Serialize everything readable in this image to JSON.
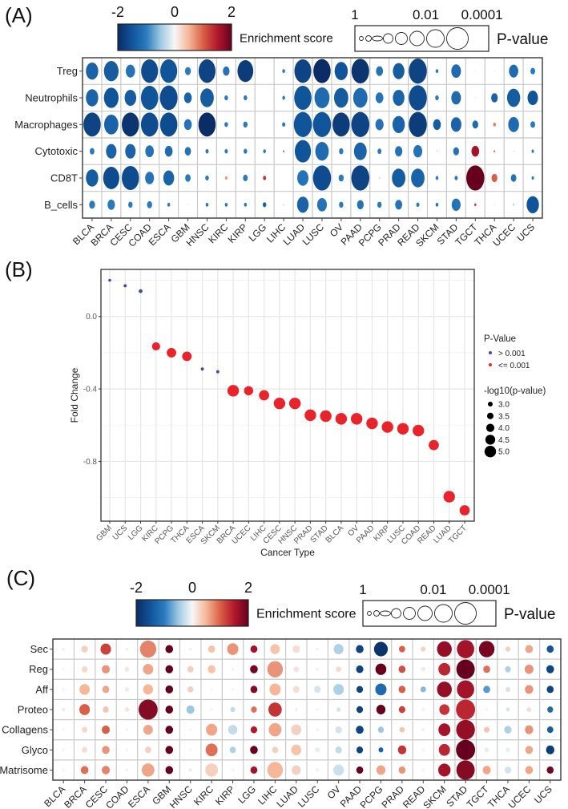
{
  "panels": {
    "a": {
      "label": "(A)"
    },
    "b": {
      "label": "(B)"
    },
    "c": {
      "label": "(C)"
    }
  },
  "colors": {
    "scale": [
      "#0b2c64",
      "#10549a",
      "#2a7abf",
      "#9dc8e2",
      "#f7f7f7",
      "#f6b698",
      "#d95f47",
      "#b2182b",
      "#67001f"
    ],
    "not_significant": "#3a4fa0",
    "significant": "#e8242a"
  },
  "chart_data": [
    {
      "type": "heatmap",
      "colorbar": {
        "title": "Enrichment score",
        "ticks": [
          "-2",
          "0",
          "2"
        ],
        "range": [
          -2,
          2
        ]
      },
      "size_legend": {
        "title": "P-value",
        "ticks": [
          "1",
          "0.01",
          "0.0001"
        ]
      },
      "rows": [
        "Treg",
        "Neutrophils",
        "Macrophages",
        "Cytotoxic",
        "CD8T",
        "B_cells"
      ],
      "columns": [
        "BLCA",
        "BRCA",
        "CESC",
        "COAD",
        "ESCA",
        "GBM",
        "HNSC",
        "KIRC",
        "KIRP",
        "LGG",
        "LIHC",
        "LUAD",
        "LUSC",
        "OV",
        "PAAD",
        "PCPG",
        "PRAD",
        "READ",
        "SKCM",
        "STAD",
        "TGCT",
        "THCA",
        "UCEC",
        "UCS"
      ],
      "enrichment_score": [
        [
          -1.3,
          -1.4,
          -1.1,
          -1.6,
          -1.5,
          -1.0,
          -1.7,
          -1.1,
          -1.8,
          0,
          -1.0,
          -1.7,
          -2.0,
          -1.5,
          -1.9,
          -1.1,
          -1.4,
          -1.7,
          -1.0,
          -1.2,
          -0.1,
          -0.1,
          -1.2,
          -1.0
        ],
        [
          -1.3,
          -1.5,
          -1.4,
          -1.5,
          -1.6,
          -1.3,
          -1.4,
          -1.0,
          -1.0,
          0,
          -1.0,
          -1.5,
          -1.2,
          -1.4,
          -1.2,
          -1.1,
          -1.3,
          -1.6,
          -1.0,
          -1.2,
          -0.1,
          -1.3,
          -1.4,
          -1.5
        ],
        [
          -1.7,
          -1.3,
          -1.9,
          -1.6,
          -1.6,
          -1.1,
          -2.0,
          -1.0,
          -1.0,
          0,
          -1.0,
          -1.5,
          -1.5,
          -1.8,
          -1.7,
          -1.1,
          -1.3,
          -1.8,
          -1.4,
          -1.3,
          -1.2,
          0.8,
          -1.2,
          -1.0
        ],
        [
          -1.0,
          -1.3,
          -1.3,
          -1.1,
          -1.2,
          -1.1,
          -1.0,
          -1.0,
          -1.0,
          -1.0,
          -0.8,
          -1.5,
          -1.2,
          -1.0,
          -1.3,
          -1.0,
          -1.1,
          -1.1,
          -0.3,
          -1.1,
          1.6,
          0.9,
          -0.2,
          -1.0
        ],
        [
          -1.4,
          -1.6,
          -1.6,
          -1.1,
          -1.3,
          -1.0,
          -1.0,
          0.7,
          -1.0,
          1.3,
          0,
          -1.1,
          -1.6,
          -1.0,
          -1.7,
          -0.3,
          -1.4,
          -1.3,
          -1.0,
          -1.0,
          2.0,
          1.0,
          -1.1,
          -1.0
        ],
        [
          -1.0,
          -1.0,
          -1.0,
          -1.0,
          -1.0,
          -0.1,
          -1.0,
          -1.0,
          -1.0,
          -1.3,
          -0.3,
          -1.3,
          -1.1,
          -1.0,
          -1.1,
          -1.0,
          -1.1,
          -1.0,
          -1.0,
          -1.1,
          1.2,
          -0.1,
          -0.4,
          -1.5
        ]
      ],
      "neg_log10_p": [
        [
          3.0,
          3.6,
          2.2,
          4.2,
          4.2,
          1.3,
          4.2,
          1.5,
          3.9,
          0,
          0.5,
          4.2,
          4.3,
          3.2,
          4.4,
          1.6,
          2.8,
          4.5,
          0.5,
          2.3,
          0.1,
          0.1,
          2.2,
          1.0
        ],
        [
          3.0,
          3.6,
          2.8,
          4.3,
          4.4,
          1.8,
          3.3,
          0.7,
          0.7,
          0,
          0.5,
          4.3,
          3.7,
          3.5,
          3.5,
          1.8,
          2.8,
          4.5,
          0.7,
          2.3,
          0.1,
          1.5,
          3.2,
          2.5
        ],
        [
          4.3,
          3.5,
          4.3,
          4.3,
          4.3,
          1.8,
          4.3,
          0.7,
          0.9,
          0,
          0.6,
          4.5,
          4.5,
          4.3,
          4.5,
          1.9,
          3.0,
          4.5,
          1.8,
          2.5,
          1.3,
          0.5,
          2.6,
          1.0
        ],
        [
          1.0,
          2.5,
          2.5,
          2.0,
          1.8,
          1.4,
          0.6,
          0.6,
          0.7,
          0.5,
          0.2,
          4.0,
          3.3,
          0.9,
          3.1,
          0.8,
          1.7,
          2.1,
          0.1,
          1.3,
          1.8,
          0.2,
          0.1,
          0.4
        ],
        [
          3.0,
          4.0,
          4.3,
          2.1,
          2.6,
          1.2,
          0.7,
          0.4,
          1.0,
          0.6,
          0,
          2.7,
          4.5,
          1.1,
          4.5,
          0.1,
          3.3,
          3.3,
          0.5,
          0.6,
          4.5,
          1.3,
          1.2,
          0.4
        ],
        [
          1.3,
          1.7,
          0.9,
          1.1,
          0.5,
          0.1,
          0.5,
          0.5,
          0.5,
          0.7,
          0.1,
          2.8,
          2.3,
          0.9,
          1.5,
          0.9,
          1.6,
          0.6,
          0.5,
          2.1,
          0.3,
          0.1,
          0.2,
          3.0
        ]
      ]
    },
    {
      "type": "scatter",
      "xlabel": "Cancer Type",
      "ylabel": "Fold Change",
      "ylim": [
        -1.13,
        0.26
      ],
      "yticks": [
        "0.0",
        "-0.4",
        "-0.8"
      ],
      "ytick_values": [
        0.0,
        -0.4,
        -0.8
      ],
      "grid": true,
      "legend_placement": "right",
      "color_legend": {
        "title": "P-Value",
        "entries": [
          "> 0.001",
          "<= 0.001"
        ]
      },
      "size_legend": {
        "title": "-log10(p-value)",
        "entries": [
          "3.0",
          "3.5",
          "4.0",
          "4.5",
          "5.0"
        ],
        "values": [
          3.0,
          3.5,
          4.0,
          4.5,
          5.0
        ]
      },
      "categories": [
        "GBM",
        "UCS",
        "LGG",
        "KIRC",
        "PCPG",
        "THCA",
        "ESCA",
        "SKCM",
        "BRCA",
        "UCEC",
        "LIHC",
        "CESC",
        "HNSC",
        "PRAD",
        "STAD",
        "BLCA",
        "OV",
        "PAAD",
        "KIRP",
        "LUSC",
        "COAD",
        "READ",
        "LUAD",
        "TGCT"
      ],
      "fold_change": [
        0.2,
        0.17,
        0.14,
        -0.165,
        -0.2,
        -0.22,
        -0.29,
        -0.305,
        -0.41,
        -0.41,
        -0.435,
        -0.48,
        -0.48,
        -0.545,
        -0.55,
        -0.565,
        -0.565,
        -0.59,
        -0.61,
        -0.62,
        -0.63,
        -0.71,
        -0.995,
        -1.07
      ],
      "significant": [
        false,
        false,
        false,
        true,
        true,
        true,
        false,
        false,
        true,
        true,
        true,
        true,
        true,
        true,
        true,
        true,
        true,
        true,
        true,
        true,
        true,
        true,
        true,
        true
      ],
      "neg_log10_p": [
        2.0,
        2.5,
        2.7,
        4.0,
        4.4,
        4.4,
        2.5,
        2.5,
        5.0,
        4.3,
        4.6,
        5.0,
        5.0,
        5.0,
        5.0,
        5.0,
        5.0,
        5.0,
        5.0,
        5.0,
        5.0,
        4.6,
        5.0,
        4.6
      ]
    },
    {
      "type": "heatmap",
      "colorbar": {
        "title": "Enrichment score",
        "ticks": [
          "-2",
          "0",
          "2"
        ],
        "range": [
          -2,
          2
        ]
      },
      "size_legend": {
        "title": "P-value",
        "ticks": [
          "1",
          "0.01",
          "0.0001"
        ]
      },
      "rows": [
        "Sec",
        "Reg",
        "Aff",
        "Proteo",
        "Collagens",
        "Glyco",
        "Matrisome"
      ],
      "columns": [
        "BLCA",
        "BRCA",
        "CESC",
        "COAD",
        "ESCA",
        "GBM",
        "HNSC",
        "KIRC",
        "KIRP",
        "LGG",
        "LIHC",
        "LUAD",
        "LUSC",
        "OV",
        "PAAD",
        "PCPG",
        "PRAD",
        "READ",
        "SKCM",
        "STAD",
        "TGCT",
        "THCA",
        "UCEC",
        "UCS"
      ],
      "enrichment_score": [
        [
          0.05,
          0.3,
          1.2,
          -0.05,
          0.8,
          2.0,
          -0.05,
          0.4,
          0.7,
          1.6,
          0.4,
          0.2,
          0.05,
          -0.4,
          -1.7,
          -1.9,
          1.0,
          0.3,
          1.7,
          1.6,
          1.9,
          0.3,
          0.6,
          -1.5
        ],
        [
          0.03,
          0.25,
          0.7,
          0.15,
          0.6,
          2.0,
          0.3,
          0.4,
          0.05,
          1.9,
          0.7,
          0.15,
          0.05,
          0.2,
          -1.7,
          2.0,
          1.1,
          0.1,
          1.4,
          2.0,
          0.9,
          -0.4,
          0.7,
          -1.7
        ],
        [
          0.03,
          0.5,
          0.6,
          0.1,
          0.5,
          2.0,
          0.3,
          0.02,
          0.02,
          1.8,
          0.5,
          0.2,
          -0.2,
          -0.4,
          -1.7,
          -1.2,
          1.0,
          -0.6,
          1.7,
          1.6,
          -0.8,
          -0.2,
          0.7,
          -1.7
        ],
        [
          -0.1,
          1.0,
          0.4,
          0.15,
          1.8,
          2.0,
          -0.5,
          0.02,
          -0.3,
          0.9,
          1.3,
          0.05,
          0.02,
          -0.2,
          -1.7,
          2.0,
          1.2,
          -0.05,
          1.3,
          1.4,
          0.03,
          -0.2,
          0.2,
          -1.2
        ],
        [
          0.02,
          0.25,
          1.0,
          0.02,
          0.6,
          2.0,
          0.02,
          0.6,
          -0.3,
          1.5,
          0.6,
          0.3,
          0.05,
          -0.2,
          -1.7,
          -0.5,
          0.4,
          0.05,
          1.6,
          1.7,
          0.4,
          -0.4,
          0.7,
          -1.4
        ],
        [
          0.03,
          0.2,
          0.7,
          0.02,
          0.3,
          2.0,
          0.02,
          0.9,
          -0.4,
          2.0,
          0.3,
          0.4,
          -0.1,
          -0.3,
          -1.7,
          -1.3,
          1.3,
          0.02,
          1.4,
          2.0,
          -0.1,
          -0.1,
          0.6,
          -1.8
        ],
        [
          0.02,
          0.9,
          0.8,
          0.05,
          0.6,
          2.0,
          0.1,
          0.3,
          0.02,
          1.6,
          0.5,
          0.3,
          0.05,
          -0.25,
          2.0,
          0.6,
          0.7,
          0.02,
          1.6,
          1.8,
          0.6,
          -0.2,
          0.6,
          1.9
        ]
      ],
      "neg_log10_p": [
        [
          0.5,
          1.5,
          2.6,
          0.5,
          4.2,
          1.8,
          0.5,
          1.6,
          2.8,
          1.6,
          2.3,
          1.7,
          0.5,
          2.4,
          1.8,
          3.5,
          1.4,
          1.0,
          3.8,
          4.5,
          4.0,
          1.0,
          1.8,
          1.6
        ],
        [
          0.4,
          1.3,
          1.9,
          1.0,
          2.5,
          1.8,
          1.4,
          1.8,
          0.5,
          1.8,
          4.0,
          1.2,
          0.6,
          1.2,
          1.7,
          2.7,
          1.6,
          0.9,
          3.0,
          4.8,
          1.6,
          1.3,
          2.1,
          1.8
        ],
        [
          0.5,
          2.5,
          1.6,
          0.9,
          2.4,
          1.8,
          1.3,
          0.4,
          0.4,
          1.6,
          2.8,
          1.5,
          1.5,
          2.6,
          1.5,
          2.8,
          1.6,
          1.2,
          3.8,
          4.5,
          1.6,
          1.0,
          2.0,
          1.6
        ],
        [
          0.6,
          2.6,
          1.3,
          0.9,
          5.0,
          1.8,
          1.9,
          0.5,
          1.0,
          1.3,
          3.4,
          0.6,
          0.5,
          0.9,
          1.5,
          2.2,
          1.5,
          0.6,
          2.5,
          5.0,
          0.5,
          0.7,
          0.9,
          1.3
        ],
        [
          0.4,
          1.2,
          1.9,
          0.5,
          2.3,
          1.8,
          0.4,
          2.8,
          2.2,
          1.5,
          3.2,
          2.5,
          0.5,
          1.5,
          1.8,
          1.3,
          1.1,
          0.6,
          3.0,
          4.9,
          1.2,
          1.7,
          2.0,
          1.4
        ],
        [
          0.5,
          1.2,
          1.8,
          0.4,
          1.4,
          1.8,
          0.4,
          3.0,
          1.4,
          1.8,
          1.4,
          2.5,
          1.0,
          1.5,
          1.5,
          1.0,
          2.0,
          0.5,
          2.8,
          5.0,
          0.9,
          0.9,
          1.8,
          2.0
        ],
        [
          0.5,
          1.8,
          1.9,
          0.5,
          3.2,
          1.8,
          0.6,
          3.2,
          0.5,
          1.6,
          4.0,
          2.2,
          0.7,
          2.6,
          1.6,
          2.2,
          1.6,
          0.5,
          3.1,
          4.8,
          1.9,
          1.5,
          1.8,
          1.6
        ]
      ]
    }
  ]
}
